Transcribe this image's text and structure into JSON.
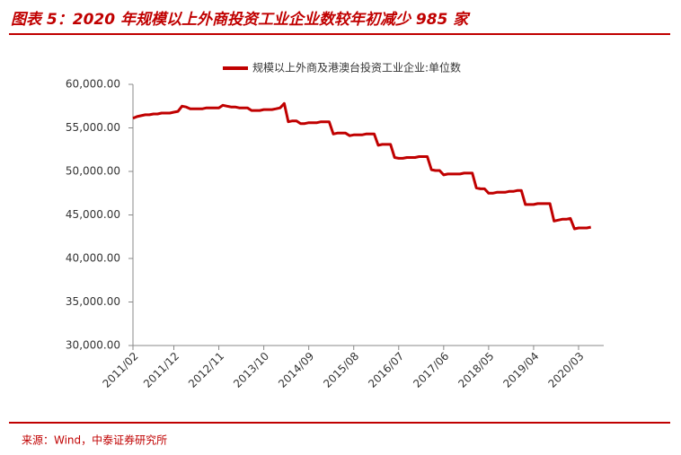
{
  "chart_data": {
    "type": "line",
    "title": "图表 5：2020 年规模以上外商投资工业企业数较年初减少 985 家",
    "categories": [
      "2011/02",
      null,
      null,
      null,
      null,
      null,
      null,
      null,
      null,
      null,
      "2011/12",
      null,
      null,
      null,
      null,
      null,
      null,
      null,
      null,
      null,
      null,
      "2012/11",
      null,
      null,
      null,
      null,
      null,
      null,
      null,
      null,
      null,
      null,
      "2013/10",
      null,
      null,
      null,
      null,
      null,
      null,
      null,
      null,
      null,
      null,
      "2014/09",
      null,
      null,
      null,
      null,
      null,
      null,
      null,
      null,
      null,
      null,
      "2015/08",
      null,
      null,
      null,
      null,
      null,
      null,
      null,
      null,
      null,
      null,
      "2016/07",
      null,
      null,
      null,
      null,
      null,
      null,
      null,
      null,
      null,
      null,
      "2017/06",
      null,
      null,
      null,
      null,
      null,
      null,
      null,
      null,
      null,
      null,
      "2018/05",
      null,
      null,
      null,
      null,
      null,
      null,
      null,
      null,
      null,
      null,
      "2019/04",
      null,
      null,
      null,
      null,
      null,
      null,
      null,
      null,
      null,
      null,
      "2020/03",
      null,
      null,
      null
    ],
    "series": [
      {
        "name": "规模以上外商及港澳台投资工业企业:单位数",
        "color": "#c00000",
        "values": [
          56100,
          56300,
          56400,
          56500,
          56500,
          56600,
          56600,
          56700,
          56700,
          56700,
          56800,
          56900,
          57500,
          57400,
          57200,
          57200,
          57200,
          57200,
          57300,
          57300,
          57300,
          57300,
          57600,
          57500,
          57400,
          57400,
          57300,
          57300,
          57300,
          57000,
          57000,
          57000,
          57100,
          57100,
          57100,
          57200,
          57300,
          57800,
          55700,
          55800,
          55800,
          55500,
          55500,
          55600,
          55600,
          55600,
          55700,
          55700,
          55700,
          54300,
          54400,
          54400,
          54400,
          54100,
          54200,
          54200,
          54200,
          54300,
          54300,
          54300,
          53000,
          53100,
          53100,
          53100,
          51600,
          51500,
          51500,
          51600,
          51600,
          51600,
          51700,
          51700,
          51700,
          50200,
          50100,
          50100,
          49600,
          49700,
          49700,
          49700,
          49700,
          49800,
          49800,
          49800,
          48100,
          48000,
          48000,
          47500,
          47500,
          47600,
          47600,
          47600,
          47700,
          47700,
          47800,
          47800,
          46200,
          46200,
          46200,
          46300,
          46300,
          46300,
          46300,
          44300,
          44400,
          44500,
          44500,
          44600,
          43400,
          43500,
          43500,
          43500,
          43600
        ]
      }
    ],
    "ylim": [
      30000,
      60000
    ],
    "yticks": [
      {
        "value": 30000,
        "label": "30,000.00"
      },
      {
        "value": 35000,
        "label": "35,000.00"
      },
      {
        "value": 40000,
        "label": "40,000.00"
      },
      {
        "value": 45000,
        "label": "45,000.00"
      },
      {
        "value": 50000,
        "label": "50,000.00"
      },
      {
        "value": 55000,
        "label": "55,000.00"
      },
      {
        "value": 60000,
        "label": "60,000.00"
      }
    ],
    "grid": false,
    "legend": "top"
  },
  "source": "来源：Wind，中泰证券研究所"
}
